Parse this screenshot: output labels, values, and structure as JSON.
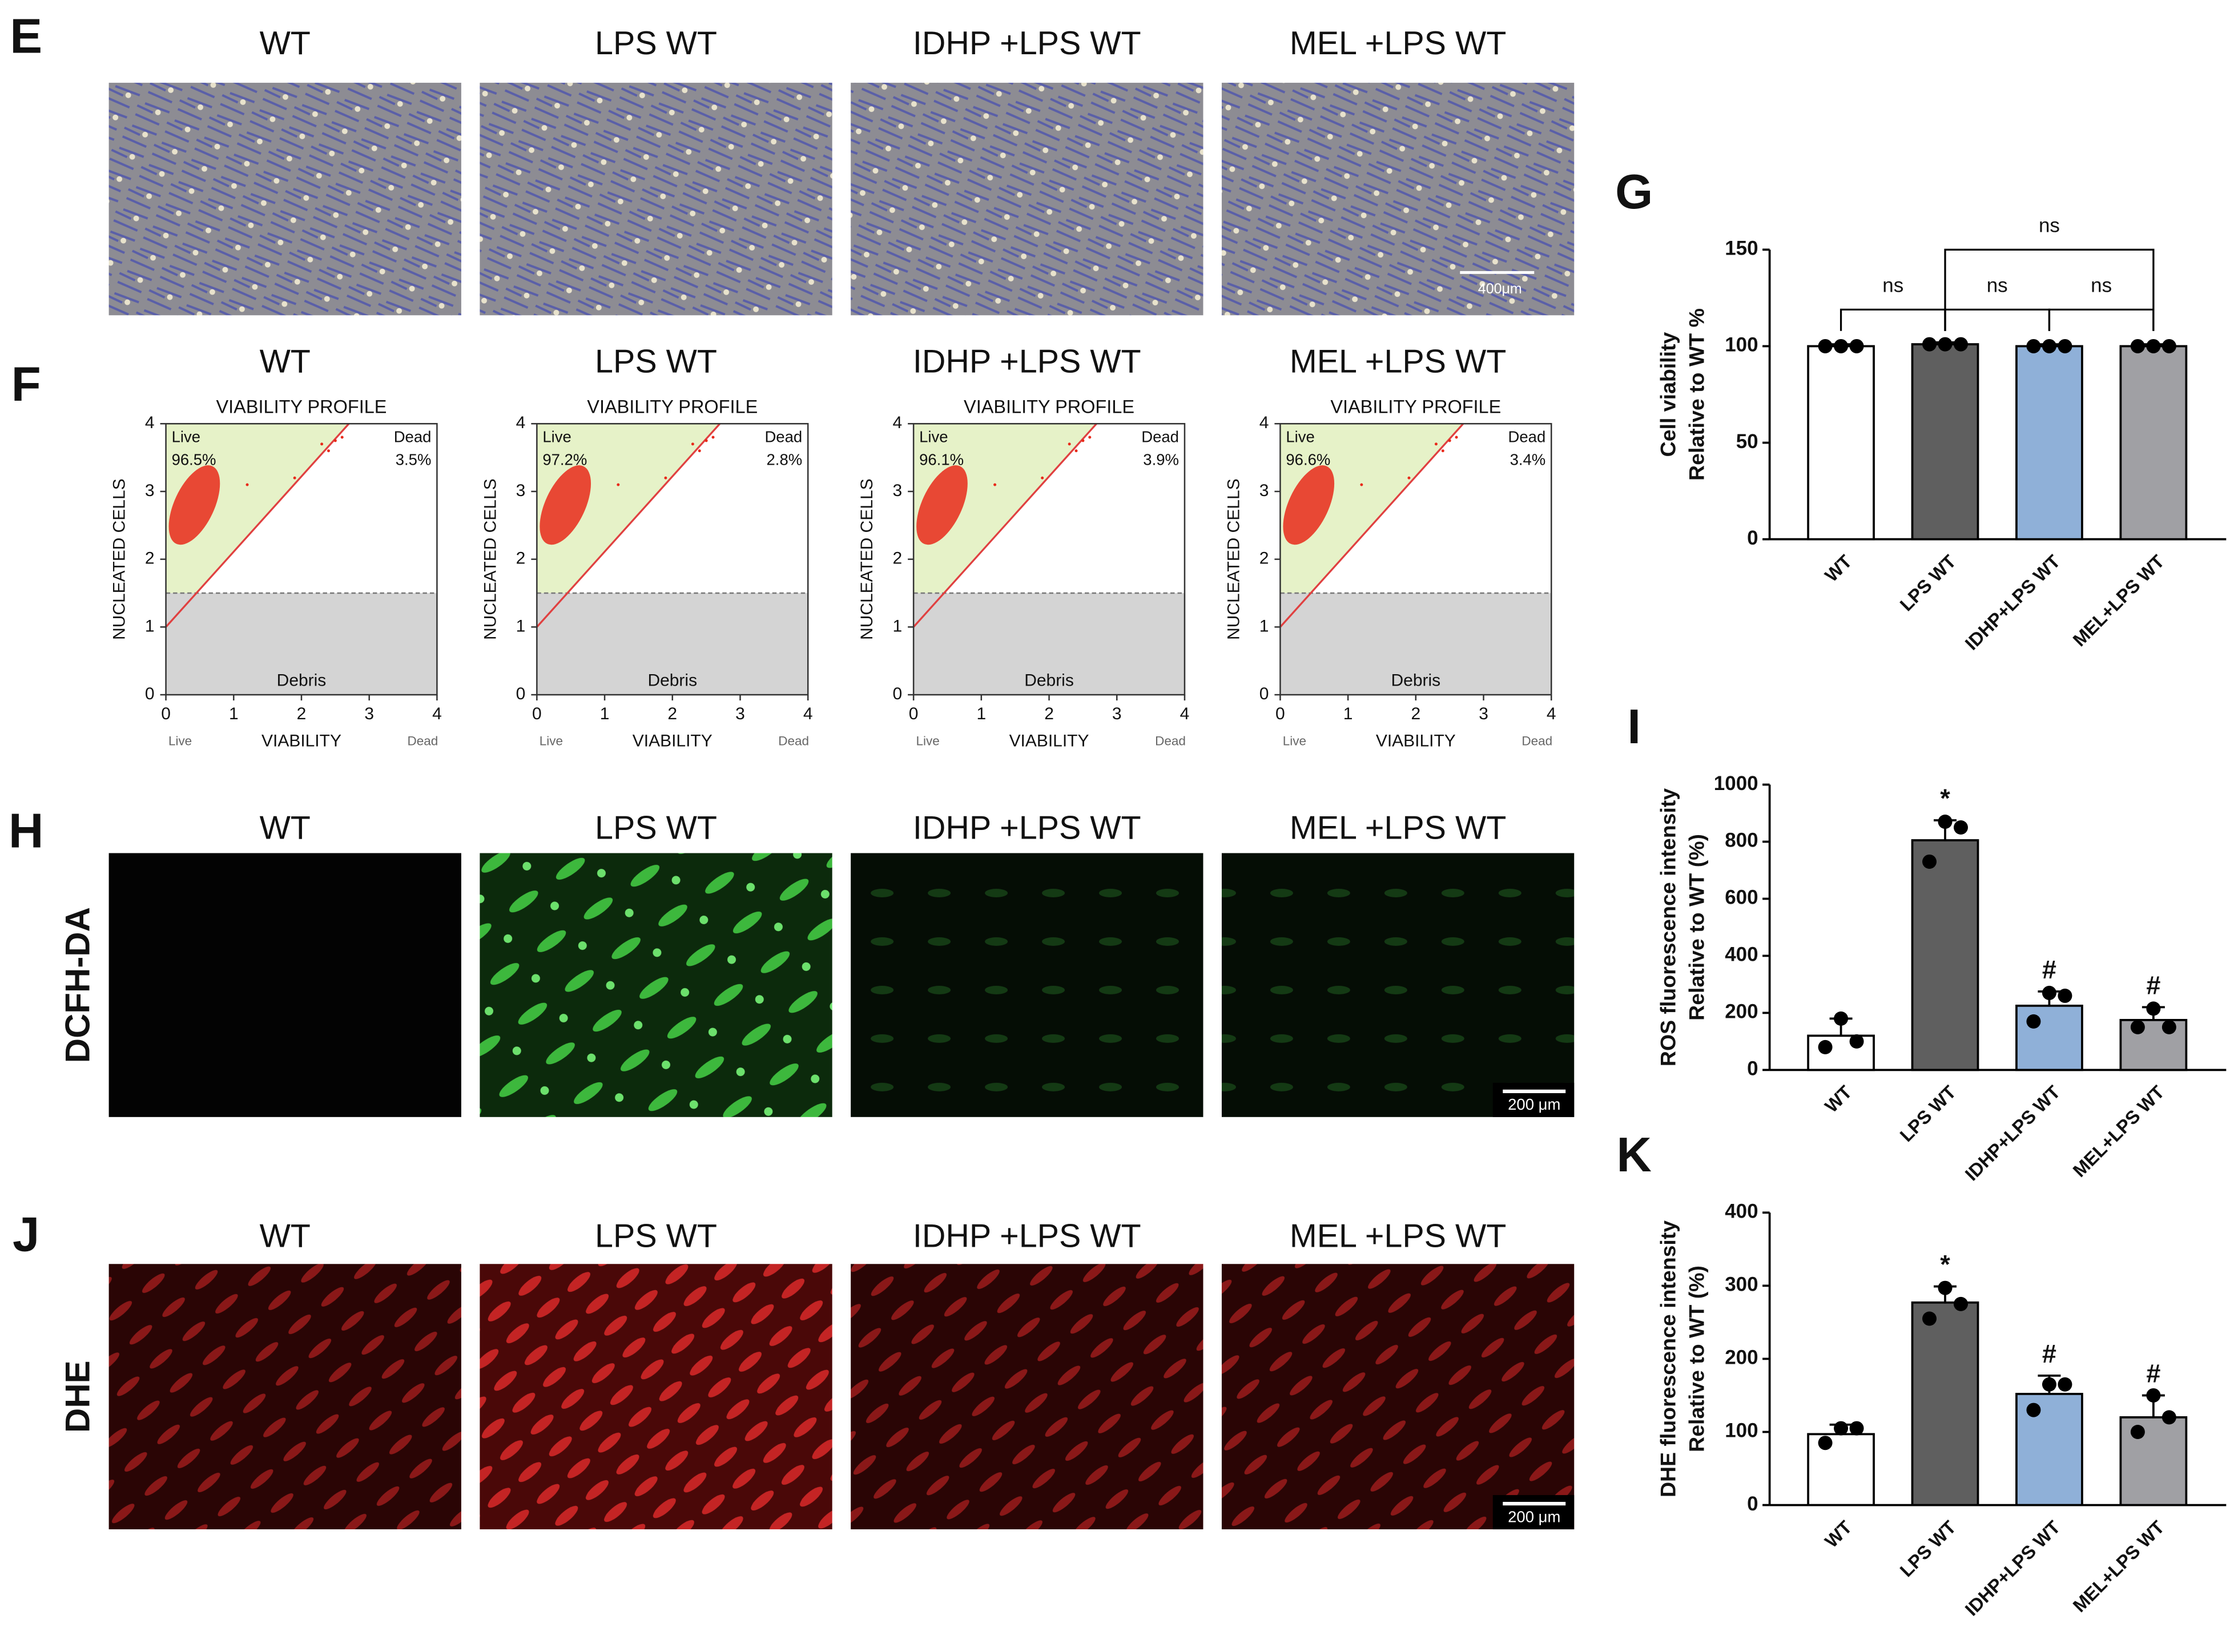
{
  "micrographs": {
    "label": "E",
    "titles": [
      "WT",
      "LPS WT",
      "IDHP +LPS WT",
      "MEL +LPS WT"
    ],
    "scale_bar": "400μm"
  },
  "flow": {
    "label": "F",
    "titles": [
      "WT",
      "LPS WT",
      "IDHP +LPS WT",
      "MEL +LPS WT"
    ],
    "plot_title": "VIABILITY PROFILE",
    "y_label": "NUCLEATED CELLS",
    "x_label": "VIABILITY",
    "x_left": "Live",
    "x_right": "Dead",
    "region_live": "Live",
    "region_dead": "Dead",
    "region_debris": "Debris",
    "live_pct": [
      "96.5%",
      "97.2%",
      "96.1%",
      "96.6%"
    ],
    "dead_pct": [
      "3.5%",
      "2.8%",
      "3.9%",
      "3.4%"
    ],
    "lim": [
      0,
      4
    ],
    "ticks": [
      0,
      1,
      2,
      3,
      4
    ]
  },
  "dcfh": {
    "label": "H",
    "row_label": "DCFH-DA",
    "titles": [
      "WT",
      "LPS WT",
      "IDHP +LPS WT",
      "MEL +LPS WT"
    ],
    "scale_bar": "200 μm"
  },
  "dhe": {
    "label": "J",
    "row_label": "DHE",
    "titles": [
      "WT",
      "LPS WT",
      "IDHP +LPS WT",
      "MEL +LPS WT"
    ],
    "scale_bar": "200 μm"
  },
  "chart_data": [
    {
      "type": "bar",
      "panel": "G",
      "ylabel": [
        "Cell viability",
        "Relative to WT %"
      ],
      "categories": [
        "WT",
        "LPS WT",
        "IDHP+LPS WT",
        "MEL+LPS WT"
      ],
      "values": [
        100,
        101,
        100,
        100
      ],
      "errors": [
        1,
        1,
        1,
        1
      ],
      "points": [
        [
          100,
          100,
          100
        ],
        [
          101,
          101,
          101
        ],
        [
          100,
          100,
          100
        ],
        [
          100,
          100,
          100
        ]
      ],
      "colors": [
        "#ffffff",
        "#5f5f5f",
        "#8fb0d8",
        "#a0a0a4"
      ],
      "comparisons": [
        {
          "label": "ns",
          "between": [
            0,
            1
          ]
        },
        {
          "label": "ns",
          "between": [
            1,
            2
          ]
        },
        {
          "label": "ns",
          "between": [
            2,
            3
          ]
        },
        {
          "label": "ns",
          "between": [
            1,
            3
          ]
        }
      ],
      "ylim": [
        0,
        150
      ],
      "yticks": [
        0,
        50,
        100,
        150
      ]
    },
    {
      "type": "bar",
      "panel": "I",
      "ylabel": [
        "ROS fluorescence intensity",
        "Relative to  WT (%)"
      ],
      "categories": [
        "WT",
        "LPS WT",
        "IDHP+LPS WT",
        "MEL+LPS WT"
      ],
      "values": [
        120,
        805,
        225,
        175
      ],
      "errors": [
        60,
        70,
        50,
        45
      ],
      "points": [
        [
          80,
          180,
          100
        ],
        [
          730,
          870,
          850
        ],
        [
          170,
          270,
          260
        ],
        [
          150,
          215,
          150
        ]
      ],
      "colors": [
        "#ffffff",
        "#5f5f5f",
        "#8fb0d8",
        "#a0a0a4"
      ],
      "markers": [
        null,
        "*",
        "#",
        "#"
      ],
      "ylim": [
        0,
        1000
      ],
      "yticks": [
        0,
        200,
        400,
        600,
        800,
        1000
      ]
    },
    {
      "type": "bar",
      "panel": "K",
      "ylabel": [
        "DHE fluorescence intensity",
        "Relative to  WT (%)"
      ],
      "categories": [
        "WT",
        "LPS WT",
        "IDHP+LPS WT",
        "MEL+LPS WT"
      ],
      "values": [
        97,
        277,
        152,
        120
      ],
      "errors": [
        13,
        22,
        25,
        30
      ],
      "points": [
        [
          85,
          105,
          105
        ],
        [
          255,
          297,
          275
        ],
        [
          130,
          165,
          165
        ],
        [
          100,
          150,
          120
        ]
      ],
      "colors": [
        "#ffffff",
        "#5f5f5f",
        "#8fb0d8",
        "#a0a0a4"
      ],
      "markers": [
        null,
        "*",
        "#",
        "#"
      ],
      "ylim": [
        0,
        400
      ],
      "yticks": [
        0,
        100,
        200,
        300,
        400
      ]
    }
  ]
}
